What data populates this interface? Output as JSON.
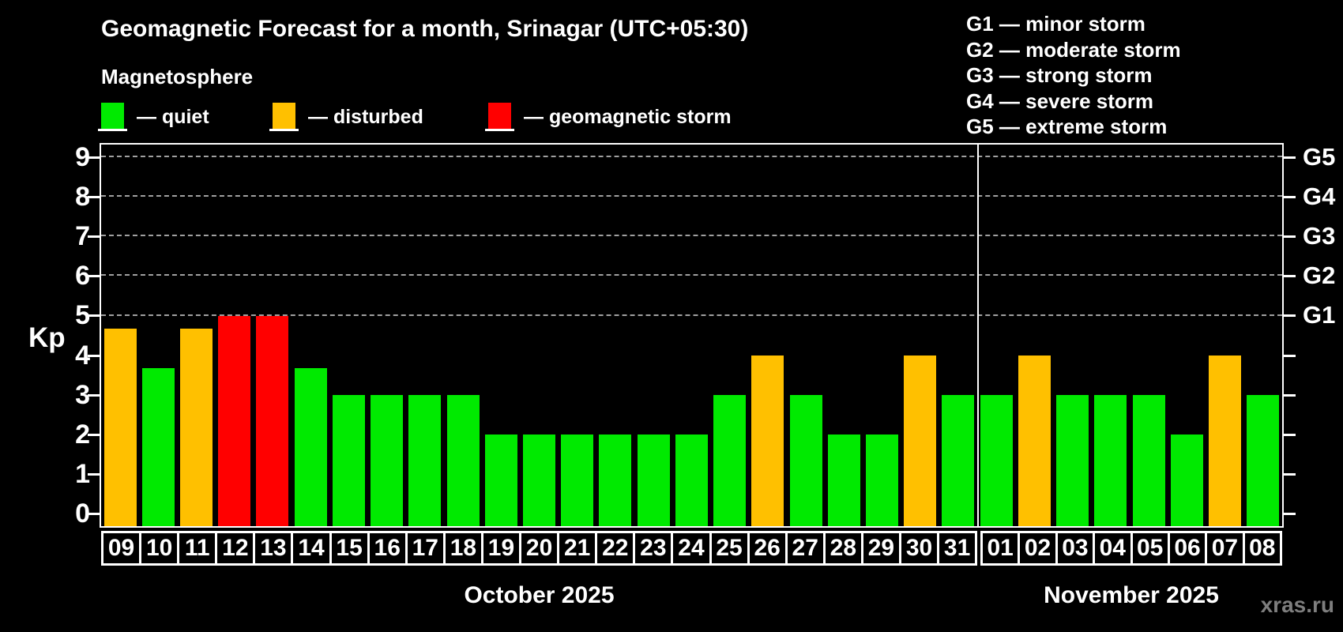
{
  "header": {
    "title": "Geomagnetic Forecast for a month, Srinagar (UTC+05:30)",
    "subtitle": "Magnetosphere"
  },
  "legend": {
    "quiet": {
      "label": "— quiet",
      "color": "#00ea00"
    },
    "disturbed": {
      "label": "— disturbed",
      "color": "#ffc000"
    },
    "storm": {
      "label": "— geomagnetic storm",
      "color": "#ff0000"
    }
  },
  "g_legend": [
    "G1 — minor storm",
    "G2 — moderate storm",
    "G3 — strong storm",
    "G4 — severe storm",
    "G5 — extreme storm"
  ],
  "watermark": "xras.ru",
  "chart_data": {
    "type": "bar",
    "title": "Geomagnetic Forecast for a month, Srinagar (UTC+05:30)",
    "ylabel": "Kp",
    "ylim": [
      0,
      9
    ],
    "yticks": [
      0,
      1,
      2,
      3,
      4,
      5,
      6,
      7,
      8,
      9
    ],
    "gridlines": [
      5,
      6,
      7,
      8,
      9
    ],
    "grid_style": "dashed horizontal lines at storm levels only",
    "legend_position": "top-left",
    "right_axis": [
      {
        "kp": 5,
        "label": "G1"
      },
      {
        "kp": 6,
        "label": "G2"
      },
      {
        "kp": 7,
        "label": "G3"
      },
      {
        "kp": 8,
        "label": "G4"
      },
      {
        "kp": 9,
        "label": "G5"
      }
    ],
    "months": [
      {
        "label": "October 2025",
        "bars": [
          {
            "day": "09",
            "kp": 4.67,
            "status": "disturbed"
          },
          {
            "day": "10",
            "kp": 3.67,
            "status": "quiet"
          },
          {
            "day": "11",
            "kp": 4.67,
            "status": "disturbed"
          },
          {
            "day": "12",
            "kp": 5,
            "status": "storm"
          },
          {
            "day": "13",
            "kp": 5,
            "status": "storm"
          },
          {
            "day": "14",
            "kp": 3.67,
            "status": "quiet"
          },
          {
            "day": "15",
            "kp": 3,
            "status": "quiet"
          },
          {
            "day": "16",
            "kp": 3,
            "status": "quiet"
          },
          {
            "day": "17",
            "kp": 3,
            "status": "quiet"
          },
          {
            "day": "18",
            "kp": 3,
            "status": "quiet"
          },
          {
            "day": "19",
            "kp": 2,
            "status": "quiet"
          },
          {
            "day": "20",
            "kp": 2,
            "status": "quiet"
          },
          {
            "day": "21",
            "kp": 2,
            "status": "quiet"
          },
          {
            "day": "22",
            "kp": 2,
            "status": "quiet"
          },
          {
            "day": "23",
            "kp": 2,
            "status": "quiet"
          },
          {
            "day": "24",
            "kp": 2,
            "status": "quiet"
          },
          {
            "day": "25",
            "kp": 3,
            "status": "quiet"
          },
          {
            "day": "26",
            "kp": 4,
            "status": "disturbed"
          },
          {
            "day": "27",
            "kp": 3,
            "status": "quiet"
          },
          {
            "day": "28",
            "kp": 2,
            "status": "quiet"
          },
          {
            "day": "29",
            "kp": 2,
            "status": "quiet"
          },
          {
            "day": "30",
            "kp": 4,
            "status": "disturbed"
          },
          {
            "day": "31",
            "kp": 3,
            "status": "quiet"
          }
        ]
      },
      {
        "label": "November 2025",
        "bars": [
          {
            "day": "01",
            "kp": 3,
            "status": "quiet"
          },
          {
            "day": "02",
            "kp": 4,
            "status": "disturbed"
          },
          {
            "day": "03",
            "kp": 3,
            "status": "quiet"
          },
          {
            "day": "04",
            "kp": 3,
            "status": "quiet"
          },
          {
            "day": "05",
            "kp": 3,
            "status": "quiet"
          },
          {
            "day": "06",
            "kp": 2,
            "status": "quiet"
          },
          {
            "day": "07",
            "kp": 4,
            "status": "disturbed"
          },
          {
            "day": "08",
            "kp": 3,
            "status": "quiet"
          }
        ]
      }
    ]
  }
}
